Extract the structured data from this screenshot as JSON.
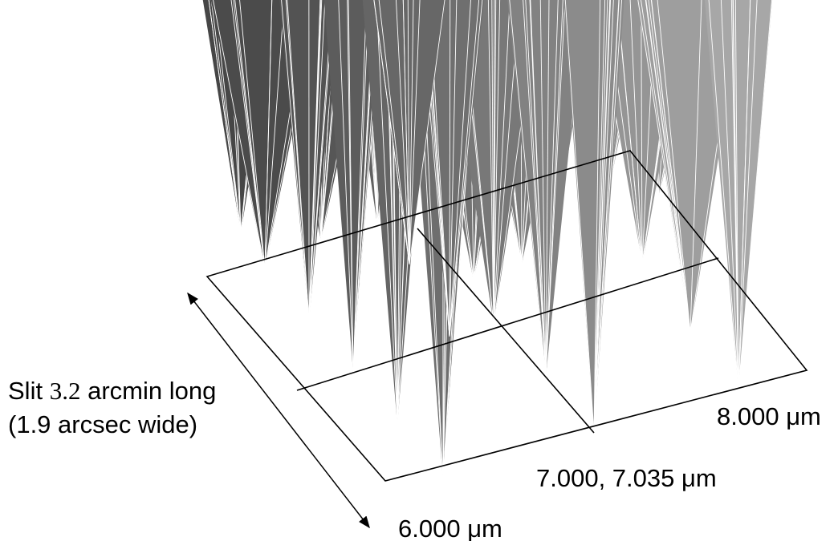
{
  "slit_label": {
    "line1_start": "Slit",
    "line1_number": "3.2",
    "line1_end": "arcmin long",
    "line2": "(1.9 arcsec wide)"
  },
  "wavelength_labels": [
    "8.000 μm",
    "7.000, 7.035 μm",
    "6.000 μm"
  ]
}
